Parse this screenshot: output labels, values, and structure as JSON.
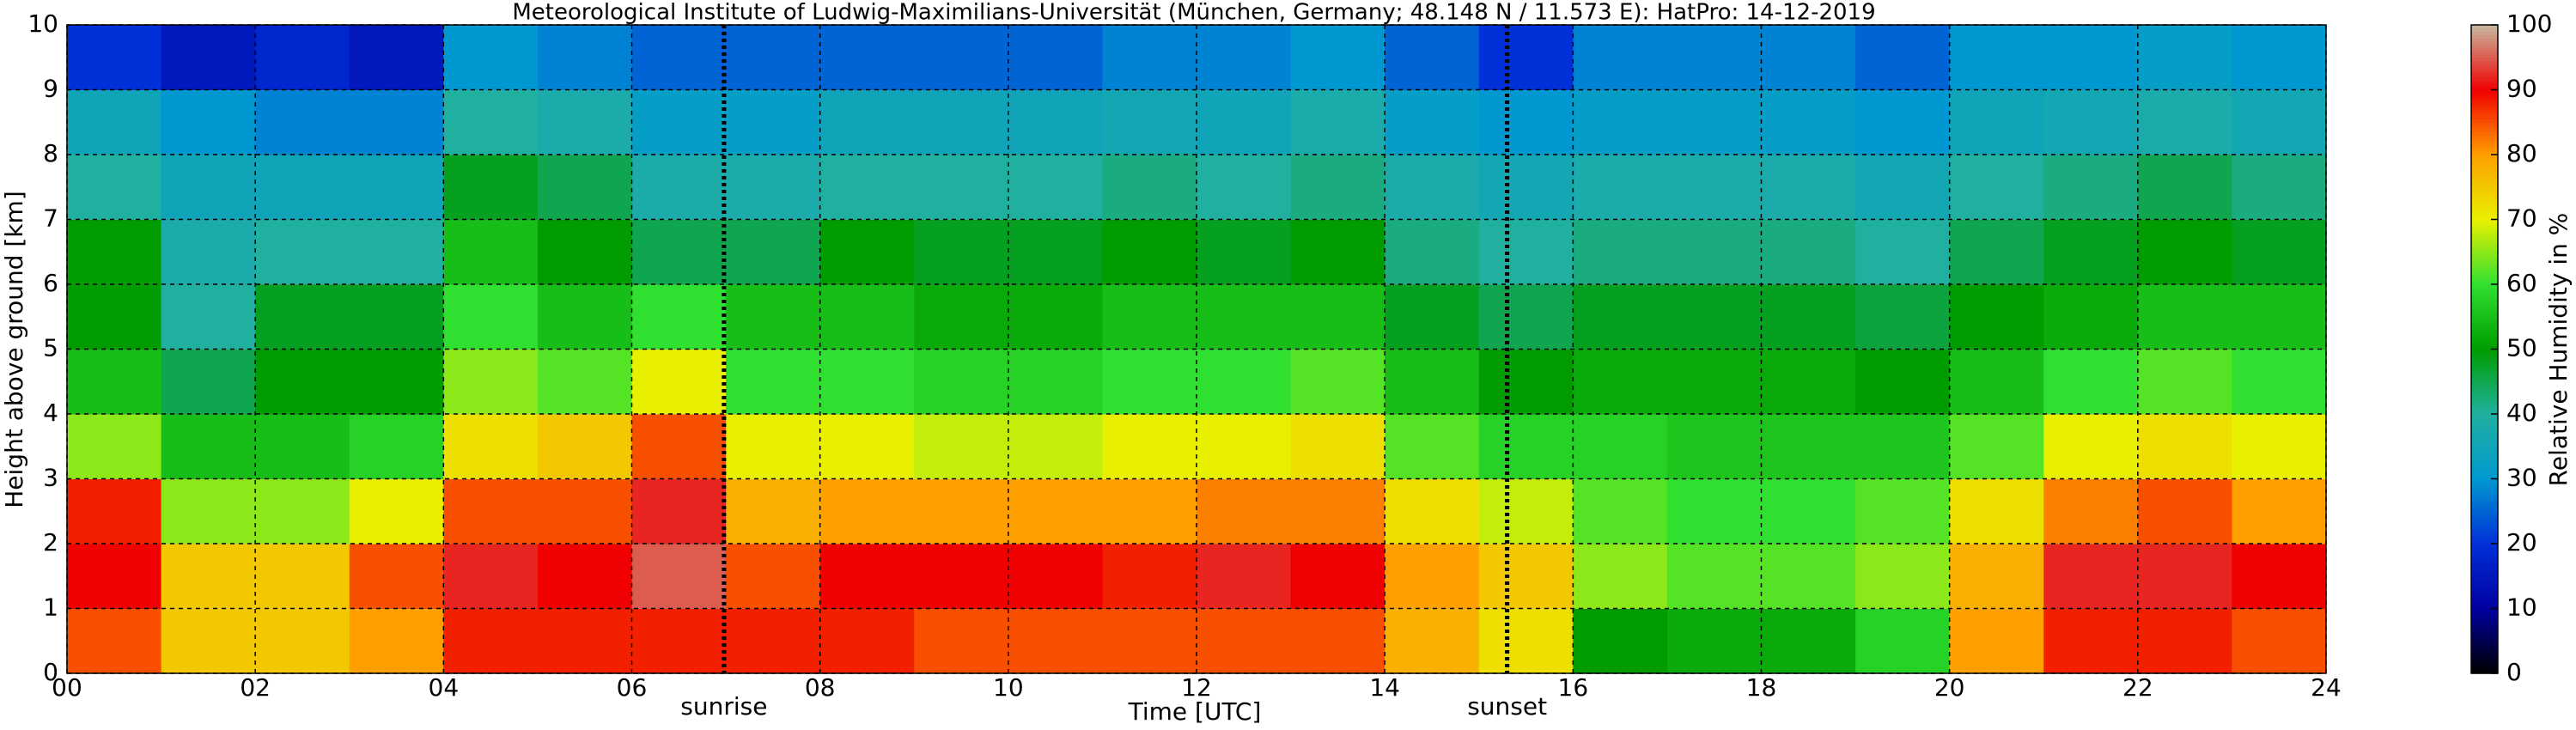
{
  "chart_data": {
    "type": "heatmap",
    "title": "Meteorological Institute of Ludwig-Maximilians-Universität (München, Germany; 48.148 N / 11.573 E):    HatPro: 14-12-2019",
    "x_label": "Time [UTC]",
    "y_label": "Height above ground [km]",
    "xlim": [
      0,
      24
    ],
    "ylim": [
      0,
      10
    ],
    "xticks": [
      {
        "value": 0,
        "label": "00"
      },
      {
        "value": 2,
        "label": "02"
      },
      {
        "value": 4,
        "label": "04"
      },
      {
        "value": 6,
        "label": "06"
      },
      {
        "value": 8,
        "label": "08"
      },
      10,
      12,
      14,
      16,
      18,
      20,
      22,
      24
    ],
    "yticks": [
      0,
      1,
      2,
      3,
      4,
      5,
      6,
      7,
      8,
      9,
      10
    ],
    "grid": true,
    "annotations": [
      {
        "x": 6.98,
        "label": "sunrise"
      },
      {
        "x": 15.3,
        "label": "sunset"
      }
    ],
    "z": [
      [
        85,
        90,
        88,
        65,
        55,
        50,
        50,
        40,
        35,
        20
      ],
      [
        75,
        75,
        65,
        55,
        45,
        40,
        38,
        35,
        30,
        15
      ],
      [
        75,
        75,
        65,
        55,
        50,
        48,
        40,
        35,
        28,
        18
      ],
      [
        80,
        85,
        70,
        58,
        50,
        48,
        40,
        35,
        28,
        15
      ],
      [
        88,
        92,
        85,
        72,
        65,
        60,
        55,
        48,
        40,
        30
      ],
      [
        88,
        90,
        85,
        75,
        62,
        55,
        50,
        45,
        38,
        28
      ],
      [
        88,
        95,
        92,
        85,
        70,
        60,
        45,
        38,
        32,
        25
      ],
      [
        88,
        85,
        78,
        70,
        60,
        55,
        45,
        38,
        32,
        25
      ],
      [
        88,
        90,
        80,
        70,
        60,
        55,
        50,
        40,
        35,
        25
      ],
      [
        85,
        90,
        80,
        68,
        58,
        52,
        48,
        40,
        35,
        25
      ],
      [
        85,
        90,
        80,
        68,
        58,
        52,
        48,
        40,
        35,
        25
      ],
      [
        85,
        88,
        80,
        70,
        60,
        55,
        50,
        42,
        36,
        28
      ],
      [
        85,
        92,
        82,
        70,
        60,
        55,
        48,
        40,
        35,
        28
      ],
      [
        85,
        90,
        82,
        72,
        62,
        55,
        50,
        42,
        38,
        30
      ],
      [
        78,
        80,
        72,
        62,
        55,
        48,
        42,
        38,
        32,
        25
      ],
      [
        72,
        75,
        68,
        58,
        50,
        45,
        40,
        36,
        30,
        20
      ],
      [
        50,
        65,
        62,
        58,
        52,
        48,
        42,
        38,
        32,
        28
      ],
      [
        52,
        62,
        60,
        56,
        52,
        48,
        42,
        38,
        32,
        28
      ],
      [
        52,
        62,
        60,
        56,
        52,
        48,
        42,
        38,
        32,
        28
      ],
      [
        58,
        65,
        62,
        56,
        50,
        46,
        40,
        36,
        30,
        25
      ],
      [
        80,
        78,
        72,
        62,
        55,
        50,
        45,
        40,
        35,
        30
      ],
      [
        88,
        92,
        82,
        70,
        60,
        52,
        48,
        42,
        36,
        30
      ],
      [
        88,
        92,
        85,
        72,
        62,
        55,
        50,
        45,
        38,
        32
      ],
      [
        85,
        90,
        80,
        70,
        60,
        55,
        48,
        42,
        36,
        30
      ]
    ],
    "colorbar": {
      "label": "Relative Humidity in %",
      "lim": [
        0,
        100
      ],
      "ticks": [
        0,
        10,
        20,
        30,
        40,
        50,
        60,
        70,
        80,
        90,
        100
      ],
      "colors": [
        "#000000",
        "#0000a0",
        "#0030d8",
        "#0098d0",
        "#20b0a0",
        "#009c00",
        "#30e030",
        "#e8f000",
        "#ffa000",
        "#f00000",
        "#c8b8a0"
      ]
    }
  }
}
